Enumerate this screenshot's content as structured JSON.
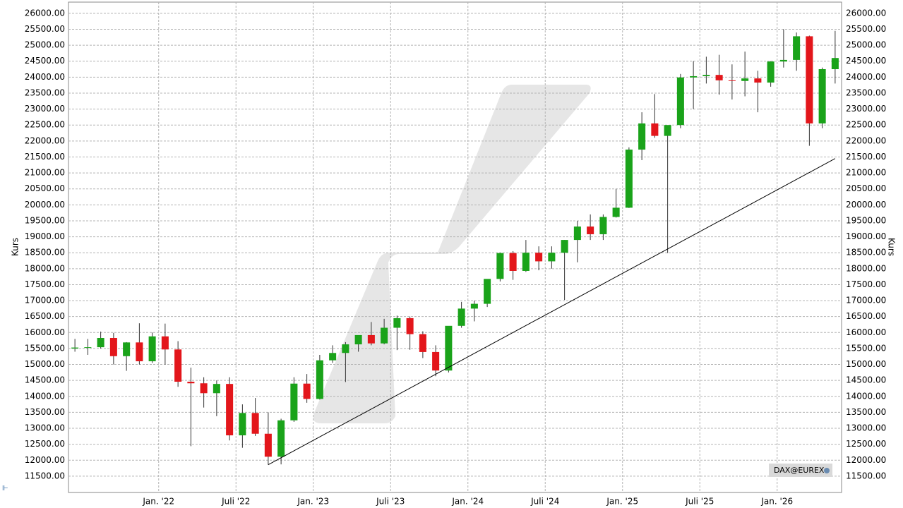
{
  "chart_data": {
    "type": "candlestick",
    "y_label": "Kurs",
    "badge": "DAX@EUREX",
    "x": [
      "2021-06",
      "2021-07",
      "2021-08",
      "2021-09",
      "2021-10",
      "2021-11",
      "2021-12",
      "2022-01",
      "2022-02",
      "2022-03",
      "2022-04",
      "2022-05",
      "2022-06",
      "2022-07",
      "2022-08",
      "2022-09",
      "2022-10",
      "2022-11",
      "2022-12",
      "2023-01",
      "2023-02",
      "2023-03",
      "2023-04",
      "2023-05",
      "2023-06",
      "2023-07",
      "2023-08",
      "2023-09",
      "2023-10",
      "2023-11",
      "2023-12",
      "2024-01",
      "2024-02",
      "2024-03",
      "2024-04",
      "2024-05",
      "2024-06",
      "2024-07",
      "2024-08",
      "2024-09",
      "2024-10",
      "2024-11",
      "2024-12",
      "2025-01",
      "2025-02",
      "2025-03",
      "2025-04",
      "2025-05",
      "2025-06",
      "2025-07",
      "2025-08",
      "2025-09",
      "2025-10",
      "2025-11",
      "2025-12",
      "2026-01",
      "2026-02",
      "2026-03",
      "2026-04",
      "2026-05"
    ],
    "open": [
      15500,
      15530,
      15540,
      15830,
      15260,
      15690,
      15100,
      15880,
      15470,
      14460,
      14410,
      14100,
      14390,
      12780,
      13480,
      12830,
      12110,
      13250,
      14400,
      13920,
      15130,
      15360,
      15630,
      15920,
      15660,
      16150,
      16450,
      15950,
      15390,
      14810,
      16210,
      16750,
      16900,
      17680,
      18490,
      17930,
      18500,
      18230,
      18500,
      18900,
      19320,
      19080,
      19620,
      19910,
      21730,
      22550,
      22160,
      22500,
      23990,
      24030,
      24070,
      23900,
      23880,
      23960,
      23830,
      24490,
      24540,
      25280,
      22550,
      24250
    ],
    "high": [
      15800,
      15800,
      16030,
      15990,
      15700,
      16290,
      16000,
      16280,
      15730,
      14900,
      14600,
      14500,
      14600,
      13750,
      13950,
      13500,
      13300,
      14600,
      14700,
      15300,
      15600,
      15700,
      15900,
      16330,
      16430,
      16530,
      16500,
      16040,
      15600,
      16200,
      16960,
      17000,
      17600,
      18500,
      18550,
      18900,
      18700,
      18700,
      18900,
      19500,
      19700,
      19700,
      20500,
      21800,
      22900,
      23470,
      22400,
      24100,
      24500,
      24640,
      24700,
      24400,
      24800,
      24200,
      24500,
      25500,
      25400,
      25300,
      24300,
      25450
    ],
    "low": [
      15400,
      15300,
      15500,
      15000,
      14800,
      15000,
      15050,
      15000,
      14300,
      12440,
      13650,
      13380,
      12620,
      12390,
      12760,
      11860,
      11870,
      13200,
      13800,
      13900,
      15050,
      14450,
      15400,
      15600,
      15630,
      15450,
      15460,
      15200,
      14630,
      14750,
      16150,
      16350,
      16800,
      17600,
      17650,
      17900,
      17950,
      18000,
      17020,
      18200,
      18900,
      18900,
      19600,
      19900,
      21400,
      22100,
      18490,
      22400,
      23000,
      23800,
      23450,
      23300,
      23400,
      22900,
      23700,
      24300,
      24200,
      21850,
      22400,
      23800
    ],
    "close": [
      15530,
      15540,
      15830,
      15260,
      15690,
      15100,
      15880,
      15470,
      14460,
      14410,
      14100,
      14390,
      12780,
      13480,
      12830,
      12110,
      13250,
      14400,
      13920,
      15130,
      15360,
      15630,
      15920,
      15660,
      16150,
      16450,
      15950,
      15390,
      14810,
      16210,
      16750,
      16900,
      17680,
      18490,
      17930,
      18500,
      18230,
      18500,
      18900,
      19320,
      19080,
      19620,
      19910,
      21730,
      22550,
      22160,
      22500,
      23990,
      24030,
      24070,
      23900,
      23880,
      23960,
      23830,
      24490,
      24540,
      25280,
      22550,
      24250,
      24600
    ],
    "up_color": "#1aa31a",
    "down_color": "#e3161b",
    "trendline": {
      "x": [
        "2022-09",
        "2026-05"
      ],
      "y": [
        11860,
        21450
      ],
      "color": "#000000"
    },
    "xlim": [
      "2021-06",
      "2026-06"
    ],
    "xticks": [
      {
        "value": "2022-01",
        "label": "Jan. '22"
      },
      {
        "value": "2022-07",
        "label": "Juli '22"
      },
      {
        "value": "2023-01",
        "label": "Jan. '23"
      },
      {
        "value": "2023-07",
        "label": "Juli '23"
      },
      {
        "value": "2024-01",
        "label": "Jan. '24"
      },
      {
        "value": "2024-07",
        "label": "Juli '24"
      },
      {
        "value": "2025-01",
        "label": "Jan. '25"
      },
      {
        "value": "2025-07",
        "label": "Juli '25"
      },
      {
        "value": "2026-01",
        "label": "Jan. '26"
      }
    ],
    "ylim": [
      10990,
      26350
    ],
    "yticks": [
      {
        "value": 11500,
        "label": "11500.00"
      },
      {
        "value": 12000,
        "label": "12000.00"
      },
      {
        "value": 12500,
        "label": "12500.00"
      },
      {
        "value": 13000,
        "label": "13000.00"
      },
      {
        "value": 13500,
        "label": "13500.00"
      },
      {
        "value": 14000,
        "label": "14000.00"
      },
      {
        "value": 14500,
        "label": "14500.00"
      },
      {
        "value": 15000,
        "label": "15000.00"
      },
      {
        "value": 15500,
        "label": "15500.00"
      },
      {
        "value": 16000,
        "label": "16000.00"
      },
      {
        "value": 16500,
        "label": "16500.00"
      },
      {
        "value": 17000,
        "label": "17000.00"
      },
      {
        "value": 17500,
        "label": "17500.00"
      },
      {
        "value": 18000,
        "label": "18000.00"
      },
      {
        "value": 18500,
        "label": "18500.00"
      },
      {
        "value": 19000,
        "label": "19000.00"
      },
      {
        "value": 19500,
        "label": "19500.00"
      },
      {
        "value": 20000,
        "label": "20000.00"
      },
      {
        "value": 20500,
        "label": "20500.00"
      },
      {
        "value": 21000,
        "label": "21000.00"
      },
      {
        "value": 21500,
        "label": "21500.00"
      },
      {
        "value": 22000,
        "label": "22000.00"
      },
      {
        "value": 22500,
        "label": "22500.00"
      },
      {
        "value": 23000,
        "label": "23000.00"
      },
      {
        "value": 23500,
        "label": "23500.00"
      },
      {
        "value": 24000,
        "label": "24000.00"
      },
      {
        "value": 24500,
        "label": "24500.00"
      },
      {
        "value": 25000,
        "label": "25000.00"
      },
      {
        "value": 25500,
        "label": "25500.00"
      },
      {
        "value": 26000,
        "label": "26000.00"
      }
    ],
    "grid": true
  }
}
